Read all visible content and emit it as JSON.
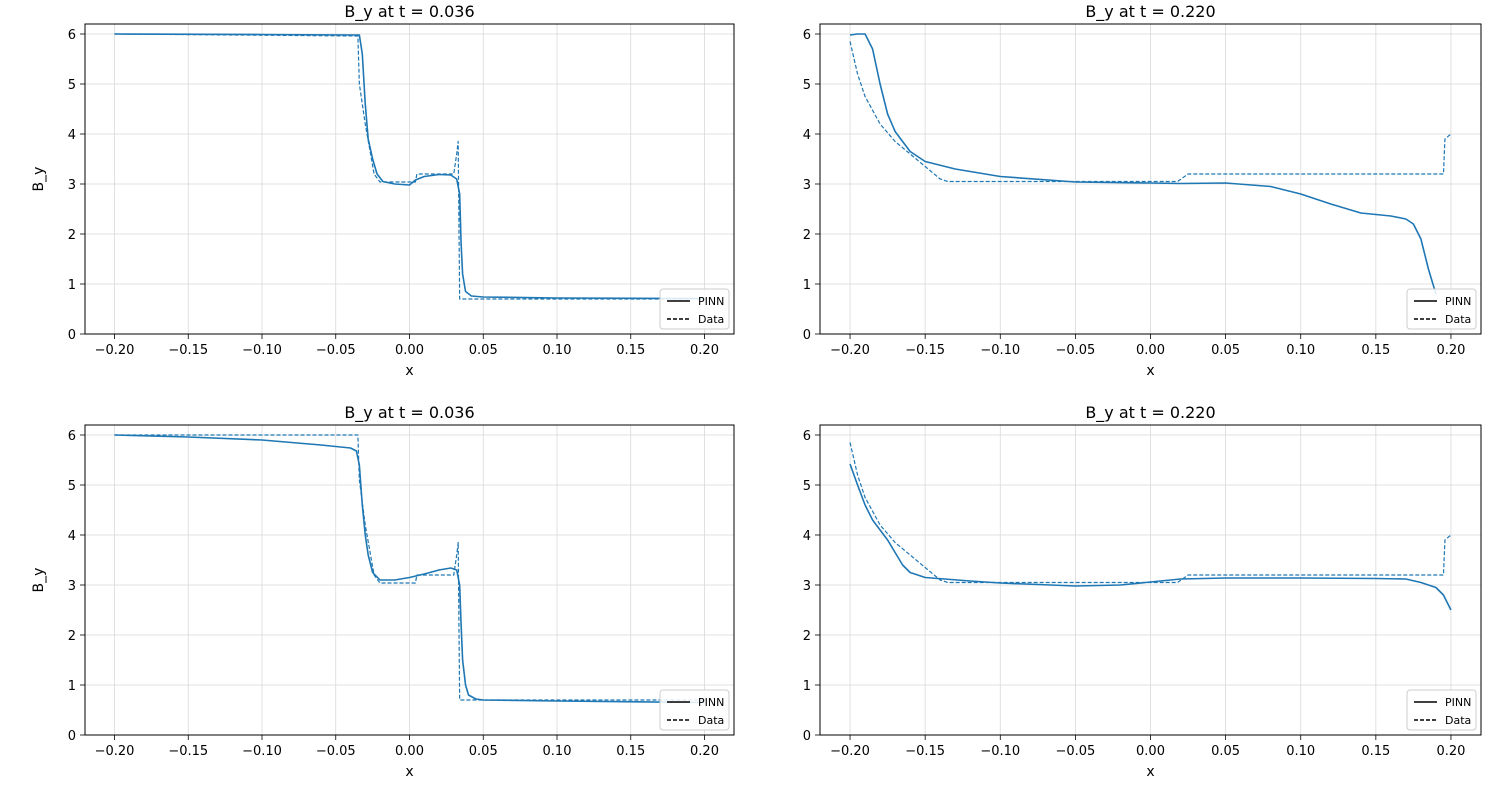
{
  "colors": {
    "series": "#1f77b4",
    "grid": "#d9d9d9",
    "axis": "#000000"
  },
  "chart_data": [
    {
      "type": "line",
      "title": "B_y at t = 0.036",
      "xlabel": "x",
      "ylabel": "B_y",
      "xlim": [
        -0.22,
        0.22
      ],
      "ylim": [
        0,
        6.2
      ],
      "xticks": [
        "-0.20",
        "-0.15",
        "-0.10",
        "-0.05",
        "0.00",
        "0.05",
        "0.10",
        "0.15",
        "0.20"
      ],
      "yticks": [
        "0",
        "1",
        "2",
        "3",
        "4",
        "5",
        "6"
      ],
      "grid": true,
      "legend": {
        "placement": "lower-right",
        "entries": [
          "PINN",
          "Data"
        ]
      },
      "series": [
        {
          "name": "PINN",
          "style": "solid",
          "points": [
            [
              -0.2,
              6.0
            ],
            [
              -0.1,
              5.99
            ],
            [
              -0.04,
              5.98
            ],
            [
              -0.034,
              5.98
            ],
            [
              -0.032,
              5.6
            ],
            [
              -0.03,
              4.6
            ],
            [
              -0.028,
              3.9
            ],
            [
              -0.025,
              3.5
            ],
            [
              -0.022,
              3.2
            ],
            [
              -0.018,
              3.05
            ],
            [
              -0.01,
              3.0
            ],
            [
              0.0,
              2.98
            ],
            [
              0.004,
              3.08
            ],
            [
              0.01,
              3.15
            ],
            [
              0.02,
              3.19
            ],
            [
              0.028,
              3.18
            ],
            [
              0.032,
              3.1
            ],
            [
              0.034,
              2.8
            ],
            [
              0.035,
              1.8
            ],
            [
              0.036,
              1.2
            ],
            [
              0.038,
              0.85
            ],
            [
              0.042,
              0.76
            ],
            [
              0.05,
              0.74
            ],
            [
              0.1,
              0.72
            ],
            [
              0.2,
              0.71
            ]
          ]
        },
        {
          "name": "Data",
          "style": "dashed",
          "points": [
            [
              -0.2,
              6.0
            ],
            [
              -0.035,
              5.96
            ],
            [
              -0.034,
              5.0
            ],
            [
              -0.03,
              4.2
            ],
            [
              -0.024,
              3.2
            ],
            [
              -0.02,
              3.04
            ],
            [
              0.004,
              3.04
            ],
            [
              0.005,
              3.2
            ],
            [
              0.03,
              3.2
            ],
            [
              0.032,
              3.6
            ],
            [
              0.033,
              3.85
            ],
            [
              0.034,
              0.7
            ],
            [
              0.2,
              0.7
            ]
          ]
        }
      ]
    },
    {
      "type": "line",
      "title": "B_y at t = 0.220",
      "xlabel": "x",
      "ylabel": "",
      "xlim": [
        -0.22,
        0.22
      ],
      "ylim": [
        0,
        6.2
      ],
      "xticks": [
        "-0.20",
        "-0.15",
        "-0.10",
        "-0.05",
        "0.00",
        "0.05",
        "0.10",
        "0.15",
        "0.20"
      ],
      "yticks": [
        "0",
        "1",
        "2",
        "3",
        "4",
        "5",
        "6"
      ],
      "grid": true,
      "legend": {
        "placement": "lower-right",
        "entries": [
          "PINN",
          "Data"
        ]
      },
      "series": [
        {
          "name": "PINN",
          "style": "solid",
          "points": [
            [
              -0.2,
              5.98
            ],
            [
              -0.195,
              6.0
            ],
            [
              -0.19,
              6.0
            ],
            [
              -0.185,
              5.7
            ],
            [
              -0.18,
              5.0
            ],
            [
              -0.175,
              4.4
            ],
            [
              -0.17,
              4.05
            ],
            [
              -0.16,
              3.65
            ],
            [
              -0.15,
              3.45
            ],
            [
              -0.13,
              3.3
            ],
            [
              -0.1,
              3.15
            ],
            [
              -0.05,
              3.04
            ],
            [
              0.0,
              3.02
            ],
            [
              0.02,
              3.01
            ],
            [
              0.05,
              3.02
            ],
            [
              0.08,
              2.95
            ],
            [
              0.1,
              2.8
            ],
            [
              0.12,
              2.6
            ],
            [
              0.14,
              2.42
            ],
            [
              0.16,
              2.36
            ],
            [
              0.17,
              2.3
            ],
            [
              0.175,
              2.2
            ],
            [
              0.18,
              1.9
            ],
            [
              0.185,
              1.3
            ],
            [
              0.19,
              0.8
            ]
          ]
        },
        {
          "name": "Data",
          "style": "dashed",
          "points": [
            [
              -0.2,
              5.85
            ],
            [
              -0.195,
              5.2
            ],
            [
              -0.19,
              4.75
            ],
            [
              -0.18,
              4.2
            ],
            [
              -0.17,
              3.85
            ],
            [
              -0.16,
              3.6
            ],
            [
              -0.15,
              3.35
            ],
            [
              -0.14,
              3.1
            ],
            [
              -0.135,
              3.05
            ],
            [
              0.018,
              3.05
            ],
            [
              0.025,
              3.2
            ],
            [
              0.195,
              3.2
            ],
            [
              0.196,
              3.9
            ],
            [
              0.2,
              4.0
            ]
          ]
        }
      ]
    },
    {
      "type": "line",
      "title": "B_y at t = 0.036",
      "xlabel": "x",
      "ylabel": "B_y",
      "xlim": [
        -0.22,
        0.22
      ],
      "ylim": [
        0,
        6.2
      ],
      "xticks": [
        "-0.20",
        "-0.15",
        "-0.10",
        "-0.05",
        "0.00",
        "0.05",
        "0.10",
        "0.15",
        "0.20"
      ],
      "yticks": [
        "0",
        "1",
        "2",
        "3",
        "4",
        "5",
        "6"
      ],
      "grid": true,
      "legend": {
        "placement": "lower-right",
        "entries": [
          "PINN",
          "Data"
        ]
      },
      "series": [
        {
          "name": "PINN",
          "style": "solid",
          "points": [
            [
              -0.2,
              6.0
            ],
            [
              -0.15,
              5.96
            ],
            [
              -0.1,
              5.9
            ],
            [
              -0.06,
              5.8
            ],
            [
              -0.04,
              5.74
            ],
            [
              -0.036,
              5.68
            ],
            [
              -0.034,
              5.4
            ],
            [
              -0.032,
              4.6
            ],
            [
              -0.03,
              4.0
            ],
            [
              -0.028,
              3.6
            ],
            [
              -0.025,
              3.25
            ],
            [
              -0.02,
              3.1
            ],
            [
              -0.01,
              3.1
            ],
            [
              0.0,
              3.15
            ],
            [
              0.01,
              3.22
            ],
            [
              0.02,
              3.3
            ],
            [
              0.028,
              3.34
            ],
            [
              0.032,
              3.3
            ],
            [
              0.034,
              3.0
            ],
            [
              0.035,
              2.2
            ],
            [
              0.036,
              1.5
            ],
            [
              0.038,
              1.0
            ],
            [
              0.04,
              0.8
            ],
            [
              0.045,
              0.72
            ],
            [
              0.05,
              0.7
            ],
            [
              0.1,
              0.68
            ],
            [
              0.2,
              0.65
            ]
          ]
        },
        {
          "name": "Data",
          "style": "dashed",
          "points": [
            [
              -0.2,
              6.0
            ],
            [
              -0.035,
              6.0
            ],
            [
              -0.034,
              5.1
            ],
            [
              -0.03,
              4.2
            ],
            [
              -0.024,
              3.2
            ],
            [
              -0.02,
              3.04
            ],
            [
              0.004,
              3.04
            ],
            [
              0.005,
              3.2
            ],
            [
              0.03,
              3.2
            ],
            [
              0.032,
              3.6
            ],
            [
              0.033,
              3.85
            ],
            [
              0.034,
              0.7
            ],
            [
              0.2,
              0.7
            ]
          ]
        }
      ]
    },
    {
      "type": "line",
      "title": "B_y at t = 0.220",
      "xlabel": "x",
      "ylabel": "",
      "xlim": [
        -0.22,
        0.22
      ],
      "ylim": [
        0,
        6.2
      ],
      "xticks": [
        "-0.20",
        "-0.15",
        "-0.10",
        "-0.05",
        "0.00",
        "0.05",
        "0.10",
        "0.15",
        "0.20"
      ],
      "yticks": [
        "0",
        "1",
        "2",
        "3",
        "4",
        "5",
        "6"
      ],
      "grid": true,
      "legend": {
        "placement": "lower-right",
        "entries": [
          "PINN",
          "Data"
        ]
      },
      "series": [
        {
          "name": "PINN",
          "style": "solid",
          "points": [
            [
              -0.2,
              5.42
            ],
            [
              -0.195,
              5.0
            ],
            [
              -0.19,
              4.6
            ],
            [
              -0.185,
              4.3
            ],
            [
              -0.18,
              4.1
            ],
            [
              -0.175,
              3.9
            ],
            [
              -0.17,
              3.65
            ],
            [
              -0.165,
              3.4
            ],
            [
              -0.16,
              3.25
            ],
            [
              -0.15,
              3.15
            ],
            [
              -0.12,
              3.08
            ],
            [
              -0.1,
              3.04
            ],
            [
              -0.05,
              2.98
            ],
            [
              -0.02,
              3.0
            ],
            [
              0.0,
              3.06
            ],
            [
              0.02,
              3.12
            ],
            [
              0.05,
              3.14
            ],
            [
              0.1,
              3.14
            ],
            [
              0.15,
              3.13
            ],
            [
              0.17,
              3.12
            ],
            [
              0.18,
              3.05
            ],
            [
              0.19,
              2.95
            ],
            [
              0.195,
              2.8
            ],
            [
              0.2,
              2.5
            ]
          ]
        },
        {
          "name": "Data",
          "style": "dashed",
          "points": [
            [
              -0.2,
              5.85
            ],
            [
              -0.195,
              5.2
            ],
            [
              -0.19,
              4.75
            ],
            [
              -0.18,
              4.2
            ],
            [
              -0.17,
              3.85
            ],
            [
              -0.16,
              3.6
            ],
            [
              -0.15,
              3.35
            ],
            [
              -0.14,
              3.1
            ],
            [
              -0.135,
              3.05
            ],
            [
              0.018,
              3.05
            ],
            [
              0.025,
              3.2
            ],
            [
              0.195,
              3.2
            ],
            [
              0.196,
              3.9
            ],
            [
              0.2,
              4.0
            ]
          ]
        }
      ]
    }
  ]
}
